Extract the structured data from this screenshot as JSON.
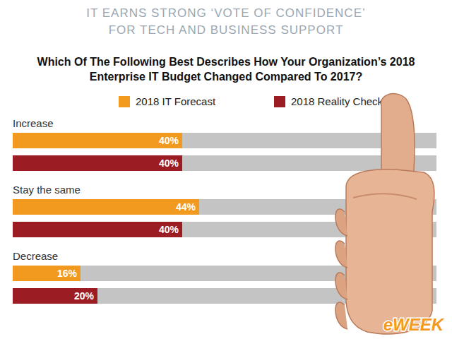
{
  "chart_data": {
    "type": "bar",
    "orientation": "horizontal",
    "title": "IT EARNS STRONG ‘VOTE OF CONFIDENCE’ FOR TECH AND BUSINESS SUPPORT",
    "subtitle": "Which Of The Following Best Describes How Your Organization’s 2018 Enterprise IT Budget Changed Compared To 2017?",
    "annotations": [
      "eWEEK"
    ],
    "categories": [
      "Increase",
      "Stay the same",
      "Decrease"
    ],
    "series": [
      {
        "name": "2018 IT Forecast",
        "color": "#f29a1f",
        "values": [
          40,
          44,
          16
        ],
        "value_labels": [
          "40%",
          "44%",
          "16%"
        ]
      },
      {
        "name": "2018 Reality Check",
        "color": "#9b1c22",
        "values": [
          40,
          40,
          20
        ],
        "value_labels": [
          "40%",
          "40%",
          "20%"
        ]
      }
    ],
    "xlim": [
      0,
      100
    ],
    "legend": "top",
    "data_labels": true,
    "tick_labels": false,
    "grid": false
  }
}
